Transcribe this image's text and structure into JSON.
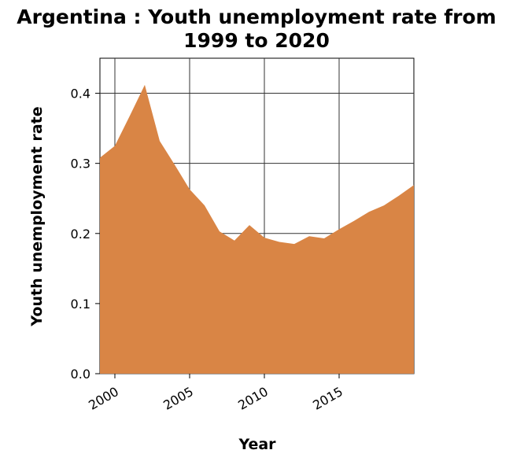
{
  "chart_data": {
    "type": "area",
    "title_line1": "Argentina : Youth unemployment rate from",
    "title_line2": "1999 to 2020",
    "xlabel": "Year",
    "ylabel": "Youth unemployment rate",
    "xlim": [
      1999,
      2020
    ],
    "ylim": [
      0,
      0.45
    ],
    "x_ticks": [
      2000,
      2005,
      2010,
      2015
    ],
    "x_tick_labels": [
      "2000",
      "2005",
      "2010",
      "2015"
    ],
    "y_ticks": [
      0.0,
      0.1,
      0.2,
      0.3,
      0.4
    ],
    "y_tick_labels": [
      "0.0",
      "0.1",
      "0.2",
      "0.3",
      "0.4"
    ],
    "grid": true,
    "fill_color": "#d98545",
    "series": [
      {
        "x": [
          1999,
          2000,
          2001,
          2002,
          2003,
          2004,
          2005,
          2006,
          2007,
          2008,
          2009,
          2010,
          2011,
          2012,
          2013,
          2014,
          2015,
          2016,
          2017,
          2018,
          2019,
          2020
        ],
        "values": [
          0.308,
          0.325,
          0.368,
          0.412,
          0.332,
          0.298,
          0.263,
          0.24,
          0.203,
          0.19,
          0.212,
          0.194,
          0.188,
          0.185,
          0.196,
          0.193,
          0.206,
          0.218,
          0.231,
          0.24,
          0.254,
          0.269
        ]
      }
    ]
  }
}
